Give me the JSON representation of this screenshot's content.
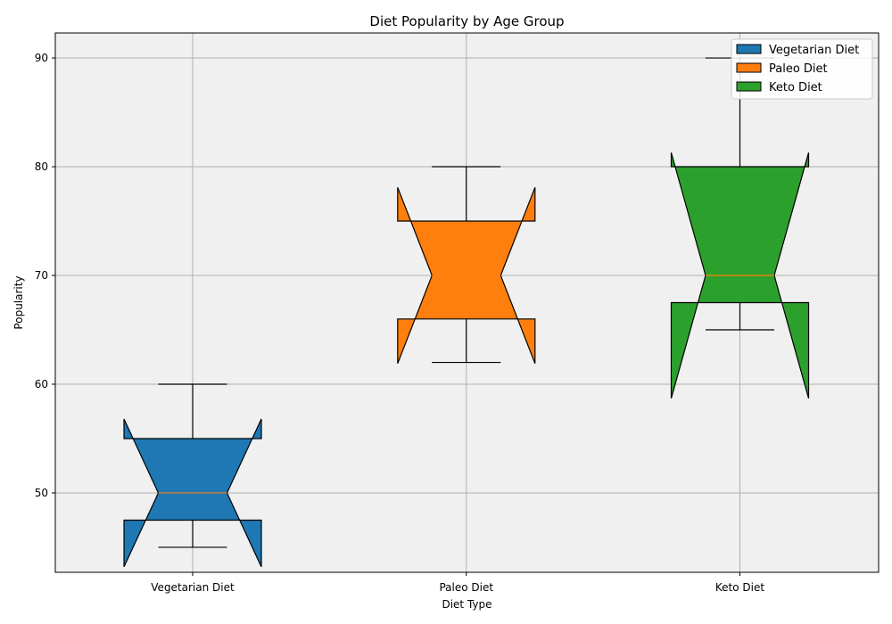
{
  "chart_data": {
    "type": "box",
    "title": "Diet Popularity by Age Group",
    "xlabel": "Diet Type",
    "ylabel": "Popularity",
    "ylim": [
      42.7,
      92.3
    ],
    "yticks": [
      50,
      60,
      70,
      80,
      90
    ],
    "grid": true,
    "notched": true,
    "legend_position": "top-right",
    "background_color": "#f0f0f0",
    "median_color": "#ff7f0e",
    "categories": [
      "Vegetarian Diet",
      "Paleo Diet",
      "Keto Diet"
    ],
    "series": [
      {
        "name": "Vegetarian Diet",
        "color": "#1f77b4",
        "whisker_low": 45,
        "q1": 47.5,
        "median": 50,
        "q3": 55,
        "whisker_high": 60,
        "notch_low": 43.2,
        "notch_high": 56.8
      },
      {
        "name": "Paleo Diet",
        "color": "#ff7f0e",
        "whisker_low": 62,
        "q1": 66,
        "median": 70,
        "q3": 75,
        "whisker_high": 80,
        "notch_low": 61.9,
        "notch_high": 78.1
      },
      {
        "name": "Keto Diet",
        "color": "#2ca02c",
        "whisker_low": 65,
        "q1": 67.5,
        "median": 70,
        "q3": 80,
        "whisker_high": 90,
        "notch_low": 58.7,
        "notch_high": 81.3
      }
    ]
  }
}
